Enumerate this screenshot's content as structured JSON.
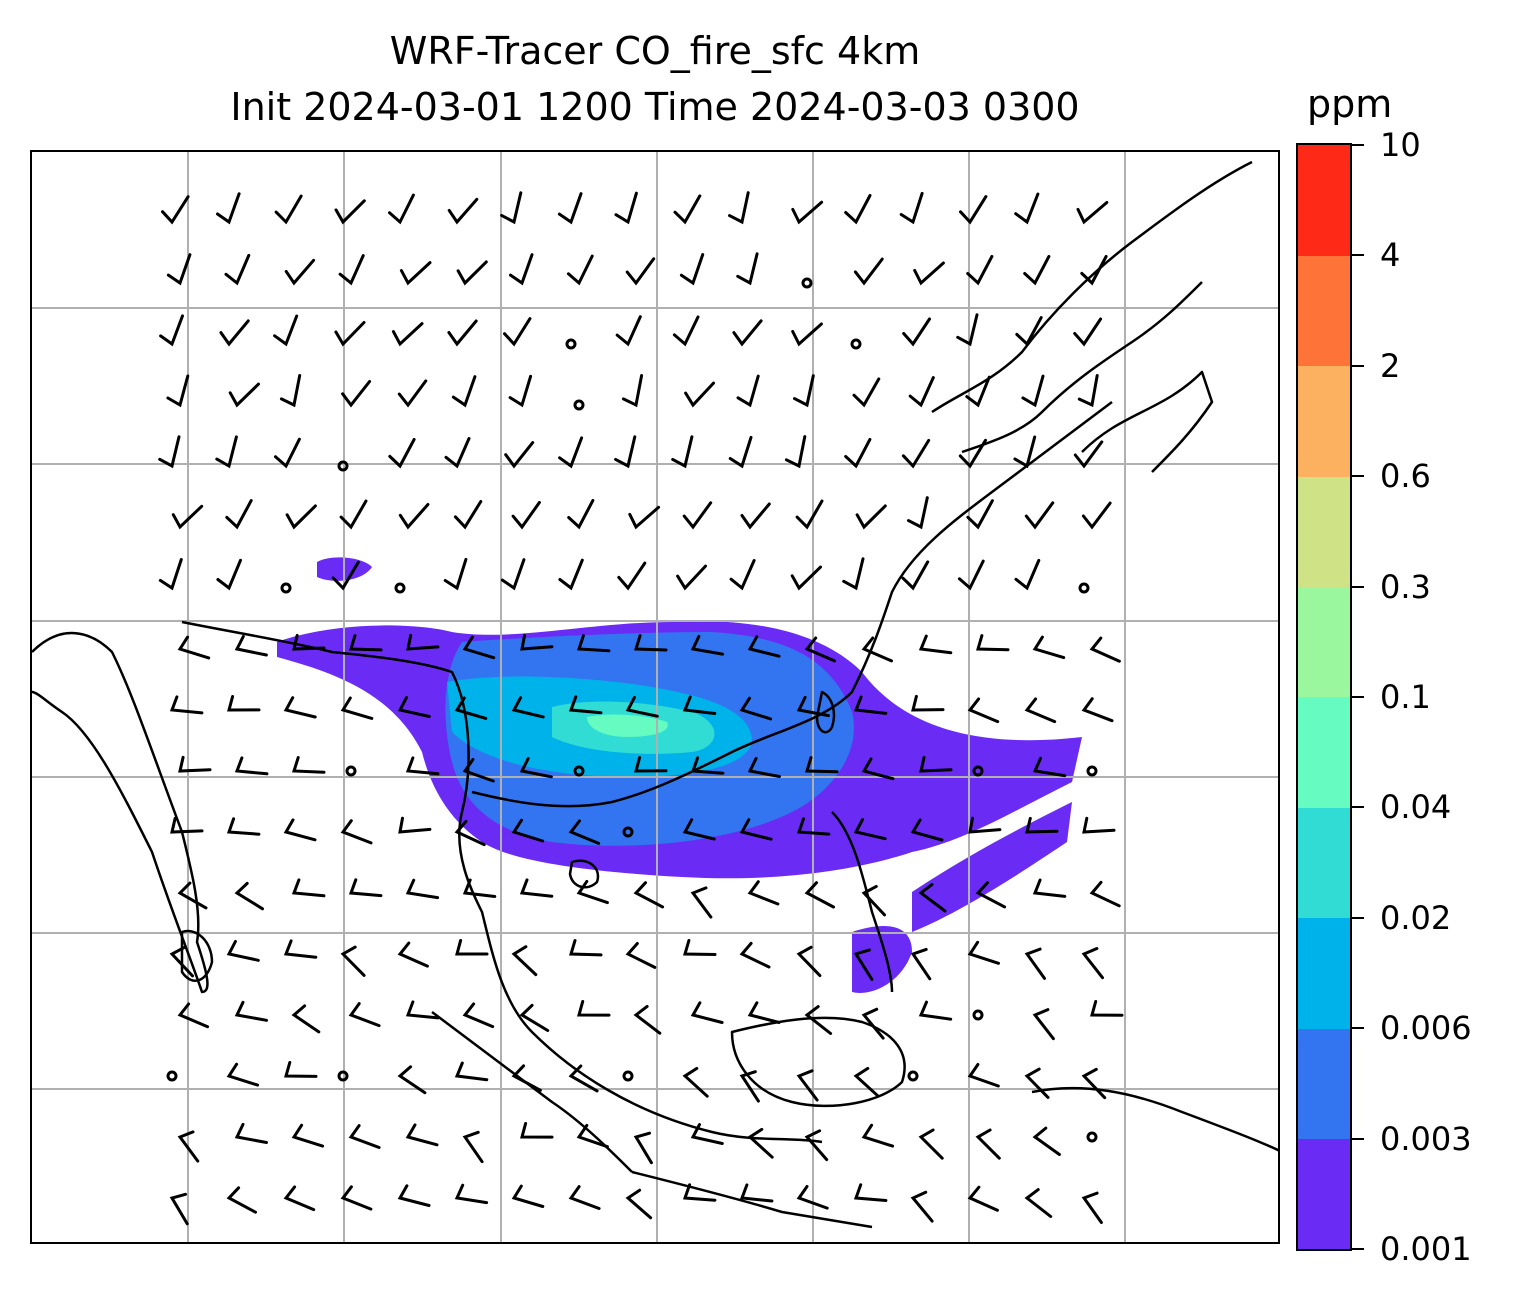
{
  "title_line1": "WRF-Tracer CO_fire_sfc 4km",
  "title_line2": "Init 2024-03-01 1200 Time 2024-03-03 0300",
  "colorbar": {
    "unit": "ppm",
    "ticks": [
      "0.001",
      "0.003",
      "0.006",
      "0.02",
      "0.04",
      "0.1",
      "0.3",
      "0.6",
      "2",
      "4",
      "10"
    ],
    "colors": [
      "#6a2cf5",
      "#3375f0",
      "#00b2ea",
      "#30dcd4",
      "#66fbc0",
      "#9bf79e",
      "#cfe286",
      "#fcb160",
      "#fd7338",
      "#fe2a17"
    ]
  },
  "map": {
    "gridlines": "on",
    "coastline_color": "#000000",
    "barb_color": "#000000"
  }
}
